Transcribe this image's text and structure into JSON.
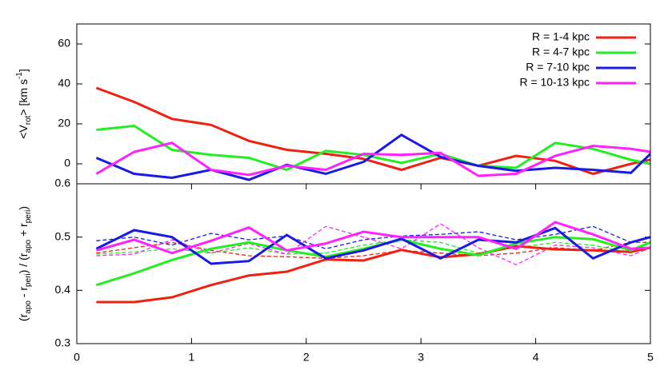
{
  "chart_data": [
    {
      "type": "line",
      "ylabel": [
        "<V",
        "rot",
        "> [km s",
        "-1",
        "]"
      ],
      "ylabel_script": [
        "base",
        "sub",
        "base",
        "super",
        "base"
      ],
      "x": [
        0.17,
        0.5,
        0.83,
        1.17,
        1.5,
        1.83,
        2.17,
        2.5,
        2.83,
        3.17,
        3.5,
        3.83,
        4.17,
        4.5,
        4.83,
        5
      ],
      "xlim": [
        0,
        5
      ],
      "ylim": [
        -10,
        70
      ],
      "yticks": [
        0,
        20,
        40,
        60
      ],
      "legend": "top-right",
      "series": [
        {
          "name": "R = 1-4 kpc",
          "color": "#ee2211",
          "values": [
            38,
            31,
            22.5,
            19.5,
            11.5,
            7,
            5,
            2.5,
            -3,
            3,
            -1,
            4,
            1.5,
            -5,
            0,
            2
          ]
        },
        {
          "name": "R = 4-7 kpc",
          "color": "#22ee22",
          "values": [
            17,
            19,
            7,
            4.5,
            3,
            -3,
            6.5,
            4.5,
            0.5,
            5,
            -1,
            -2,
            10.5,
            7.5,
            2,
            0
          ]
        },
        {
          "name": "R = 7-10 kpc",
          "color": "#1a1ae6",
          "values": [
            3,
            -5,
            -7,
            -3,
            -8,
            -0.5,
            -5,
            1,
            14.5,
            3.5,
            -1,
            -3.5,
            -2,
            -3,
            -4.5,
            5
          ]
        },
        {
          "name": "R = 10-13 kpc",
          "color": "#ff22ff",
          "values": [
            -5,
            6,
            10.5,
            -3,
            -5.5,
            -1,
            -3,
            5,
            4.5,
            5.5,
            -6,
            -5,
            4,
            9,
            7.5,
            6
          ]
        }
      ]
    },
    {
      "type": "line",
      "ylabel": [
        "(r",
        "apo",
        " - r",
        "peri",
        ") / (r",
        "apo",
        " + r",
        "peri",
        ")"
      ],
      "ylabel_script": [
        "base",
        "sub",
        "base",
        "sub",
        "base",
        "sub",
        "base",
        "sub",
        "base"
      ],
      "x": [
        0.17,
        0.5,
        0.83,
        1.17,
        1.5,
        1.83,
        2.17,
        2.5,
        2.83,
        3.17,
        3.5,
        3.83,
        4.17,
        4.5,
        4.83,
        5
      ],
      "xlim": [
        0,
        5
      ],
      "xticks": [
        0,
        1,
        2,
        3,
        4,
        5
      ],
      "ylim": [
        0.3,
        0.6
      ],
      "yticks": [
        0.3,
        0.4,
        0.5,
        0.6
      ],
      "series": [
        {
          "color": "#ee2211",
          "dash": true,
          "values": [
            0.47,
            0.48,
            0.49,
            0.475,
            0.465,
            0.463,
            0.46,
            0.465,
            0.475,
            0.47,
            0.465,
            0.47,
            0.48,
            0.475,
            0.49,
            0.49
          ]
        },
        {
          "color": "#22ee22",
          "dash": true,
          "values": [
            0.468,
            0.472,
            0.478,
            0.47,
            0.48,
            0.468,
            0.47,
            0.485,
            0.495,
            0.49,
            0.47,
            0.48,
            0.49,
            0.485,
            0.47,
            0.49
          ]
        },
        {
          "color": "#1a1ae6",
          "dash": true,
          "values": [
            0.493,
            0.5,
            0.485,
            0.507,
            0.495,
            0.502,
            0.478,
            0.495,
            0.502,
            0.505,
            0.51,
            0.495,
            0.505,
            0.52,
            0.49,
            0.5
          ]
        },
        {
          "color": "#ff22ff",
          "dash": true,
          "values": [
            0.465,
            0.468,
            0.495,
            0.47,
            0.488,
            0.468,
            0.52,
            0.5,
            0.478,
            0.525,
            0.48,
            0.448,
            0.485,
            0.48,
            0.465,
            0.48
          ]
        },
        {
          "color": "#ee2211",
          "values": [
            0.378,
            0.378,
            0.387,
            0.41,
            0.428,
            0.435,
            0.458,
            0.456,
            0.476,
            0.462,
            0.468,
            0.483,
            0.477,
            0.475,
            0.472,
            0.48
          ]
        },
        {
          "color": "#22ee22",
          "values": [
            0.41,
            0.432,
            0.457,
            0.478,
            0.49,
            0.475,
            0.463,
            0.478,
            0.495,
            0.478,
            0.466,
            0.488,
            0.5,
            0.496,
            0.475,
            0.49
          ]
        },
        {
          "color": "#1a1ae6",
          "values": [
            0.478,
            0.513,
            0.5,
            0.45,
            0.455,
            0.504,
            0.46,
            0.475,
            0.497,
            0.46,
            0.495,
            0.49,
            0.517,
            0.46,
            0.49,
            0.5
          ]
        },
        {
          "color": "#ff22ff",
          "values": [
            0.475,
            0.495,
            0.47,
            0.493,
            0.518,
            0.475,
            0.488,
            0.51,
            0.5,
            0.5,
            0.5,
            0.478,
            0.528,
            0.505,
            0.478,
            0.48
          ]
        }
      ]
    }
  ]
}
